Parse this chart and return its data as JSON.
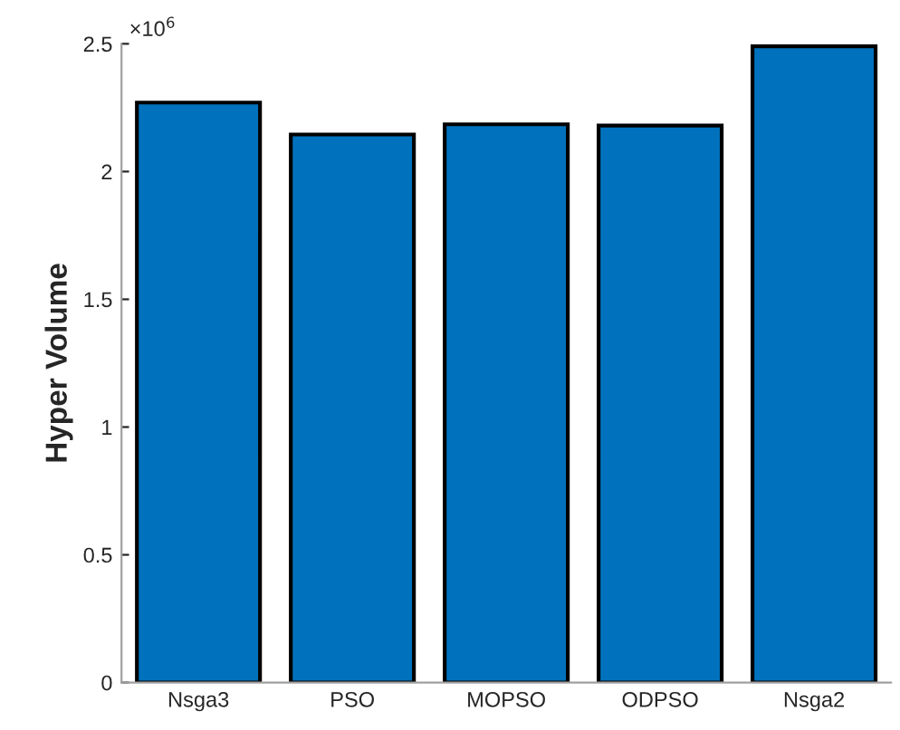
{
  "chart_data": {
    "type": "bar",
    "ylabel": "Hyper Volume",
    "categories": [
      "Nsga3",
      "PSO",
      "MOPSO",
      "ODPSO",
      "Nsga2"
    ],
    "values": [
      2.27,
      2.145,
      2.185,
      2.18,
      2.49
    ],
    "color": "#0072bd",
    "ylim": [
      0,
      2.5
    ],
    "yticks": [
      0,
      0.5,
      1,
      1.5,
      2,
      2.5
    ],
    "annotations": [
      "×10$^{6}$"
    ],
    "grid": false,
    "legend": false
  }
}
